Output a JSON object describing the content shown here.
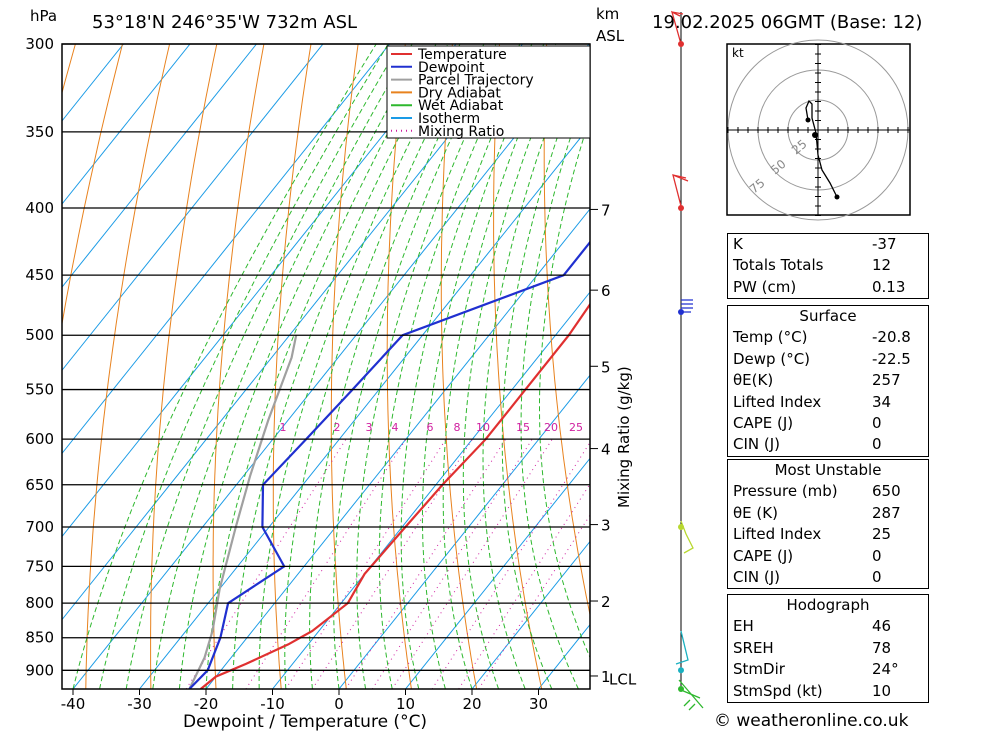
{
  "header": {
    "pressure_unit": "hPa",
    "location": "53°18'N  246°35'W  732m  ASL",
    "km_label": "km",
    "asl_label": "ASL",
    "datetime": "19.02.2025  06GMT  (Base: 12)"
  },
  "chart_data": {
    "type": "line",
    "xlabel": "Dewpoint / Temperature (°C)",
    "ylabel": "",
    "right_axis_label": "Mixing Ratio (g/kg)",
    "xlim": [
      -40,
      38
    ],
    "ylim": [
      930,
      300
    ],
    "x_ticks": [
      -40,
      -30,
      -20,
      -10,
      0,
      10,
      20,
      30
    ],
    "pressure_ticks": [
      300,
      350,
      400,
      450,
      500,
      550,
      600,
      650,
      700,
      750,
      800,
      850,
      900
    ],
    "km_ticks": [
      {
        "label": "7",
        "p": 401
      },
      {
        "label": "6",
        "p": 462
      },
      {
        "label": "5",
        "p": 528
      },
      {
        "label": "4",
        "p": 610
      },
      {
        "label": "3",
        "p": 697
      },
      {
        "label": "2",
        "p": 797
      },
      {
        "label": "1",
        "p": 909
      }
    ],
    "lcl_label": "LCL",
    "lcl_p": 913,
    "mixing_ratio_labels": [
      "1",
      "2",
      "3",
      "4",
      "6",
      "8",
      "10",
      "15",
      "20",
      "25"
    ],
    "legend": [
      "Temperature",
      "Dewpoint",
      "Parcel Trajectory",
      "Dry Adiabat",
      "Wet Adiabat",
      "Isotherm",
      "Mixing Ratio"
    ],
    "series": [
      {
        "name": "Temperature",
        "color": "#e03030",
        "points": [
          [
            -20.8,
            930
          ],
          [
            -20,
            910
          ],
          [
            -17,
            890
          ],
          [
            -13,
            860
          ],
          [
            -11,
            840
          ],
          [
            -9,
            800
          ],
          [
            -10,
            760
          ],
          [
            -9.5,
            700
          ],
          [
            -9,
            650
          ],
          [
            -8,
            600
          ],
          [
            -8,
            550
          ],
          [
            -8,
            500
          ],
          [
            -9,
            450
          ],
          [
            -9,
            400
          ],
          [
            -12,
            350
          ],
          [
            -14,
            300
          ]
        ]
      },
      {
        "name": "Dewpoint",
        "color": "#2030d0",
        "points": [
          [
            -22.5,
            930
          ],
          [
            -22,
            900
          ],
          [
            -24,
            850
          ],
          [
            -27,
            800
          ],
          [
            -23,
            750
          ],
          [
            -31,
            700
          ],
          [
            -36,
            650
          ],
          [
            -35,
            600
          ],
          [
            -34,
            550
          ],
          [
            -33,
            500
          ],
          [
            -16,
            450
          ],
          [
            -16,
            400
          ],
          [
            -19,
            350
          ],
          [
            -17,
            300
          ]
        ]
      },
      {
        "name": "Parcel Trajectory",
        "color": "#a0a0a0",
        "points": [
          [
            -22.5,
            930
          ],
          [
            -24,
            880
          ],
          [
            -26,
            840
          ],
          [
            -30,
            780
          ],
          [
            -35,
            700
          ],
          [
            -39,
            640
          ],
          [
            -43,
            580
          ],
          [
            -47,
            520
          ],
          [
            -49,
            500
          ]
        ]
      }
    ]
  },
  "wind_profile": {
    "barb_pressures": [
      300,
      400,
      480,
      700,
      900,
      930
    ]
  },
  "hodograph": {
    "unit": "kt",
    "ring_labels": [
      "25",
      "50",
      "75"
    ]
  },
  "tables": {
    "indices": [
      {
        "label": "K",
        "value": "-37"
      },
      {
        "label": "Totals Totals",
        "value": "12"
      },
      {
        "label": "PW (cm)",
        "value": "0.13"
      }
    ],
    "surface": {
      "title": "Surface",
      "rows": [
        {
          "label": "Temp (°C)",
          "value": "-20.8"
        },
        {
          "label": "Dewp (°C)",
          "value": "-22.5"
        },
        {
          "label": "θE(K)",
          "value": "257"
        },
        {
          "label": "Lifted Index",
          "value": "34"
        },
        {
          "label": "CAPE (J)",
          "value": "0"
        },
        {
          "label": "CIN (J)",
          "value": "0"
        }
      ]
    },
    "most_unstable": {
      "title": "Most Unstable",
      "rows": [
        {
          "label": "Pressure (mb)",
          "value": "650"
        },
        {
          "label": "θE (K)",
          "value": "287"
        },
        {
          "label": "Lifted Index",
          "value": "25"
        },
        {
          "label": "CAPE (J)",
          "value": "0"
        },
        {
          "label": "CIN (J)",
          "value": "0"
        }
      ]
    },
    "hodograph": {
      "title": "Hodograph",
      "rows": [
        {
          "label": "EH",
          "value": "46"
        },
        {
          "label": "SREH",
          "value": "78"
        },
        {
          "label": "StmDir",
          "value": "24°"
        },
        {
          "label": "StmSpd (kt)",
          "value": "10"
        }
      ]
    }
  },
  "footer": {
    "copyright": "© weatheronline.co.uk"
  }
}
